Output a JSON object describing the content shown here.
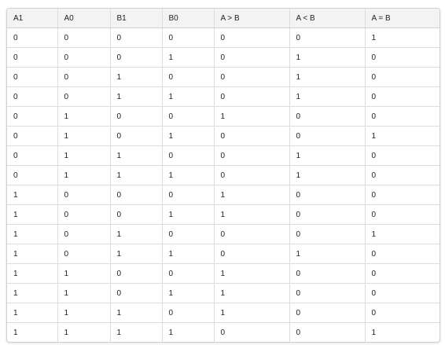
{
  "table": {
    "columns": [
      "A1",
      "A0",
      "B1",
      "B0",
      "A > B",
      "A < B",
      "A = B"
    ],
    "rows": [
      [
        "0",
        "0",
        "0",
        "0",
        "0",
        "0",
        "1"
      ],
      [
        "0",
        "0",
        "0",
        "1",
        "0",
        "1",
        "0"
      ],
      [
        "0",
        "0",
        "1",
        "0",
        "0",
        "1",
        "0"
      ],
      [
        "0",
        "0",
        "1",
        "1",
        "0",
        "1",
        "0"
      ],
      [
        "0",
        "1",
        "0",
        "0",
        "1",
        "0",
        "0"
      ],
      [
        "0",
        "1",
        "0",
        "1",
        "0",
        "0",
        "1"
      ],
      [
        "0",
        "1",
        "1",
        "0",
        "0",
        "1",
        "0"
      ],
      [
        "0",
        "1",
        "1",
        "1",
        "0",
        "1",
        "0"
      ],
      [
        "1",
        "0",
        "0",
        "0",
        "1",
        "0",
        "0"
      ],
      [
        "1",
        "0",
        "0",
        "1",
        "1",
        "0",
        "0"
      ],
      [
        "1",
        "0",
        "1",
        "0",
        "0",
        "0",
        "1"
      ],
      [
        "1",
        "0",
        "1",
        "1",
        "0",
        "1",
        "0"
      ],
      [
        "1",
        "1",
        "0",
        "0",
        "1",
        "0",
        "0"
      ],
      [
        "1",
        "1",
        "0",
        "1",
        "1",
        "0",
        "0"
      ],
      [
        "1",
        "1",
        "1",
        "0",
        "1",
        "0",
        "0"
      ],
      [
        "1",
        "1",
        "1",
        "1",
        "0",
        "0",
        "1"
      ]
    ]
  }
}
